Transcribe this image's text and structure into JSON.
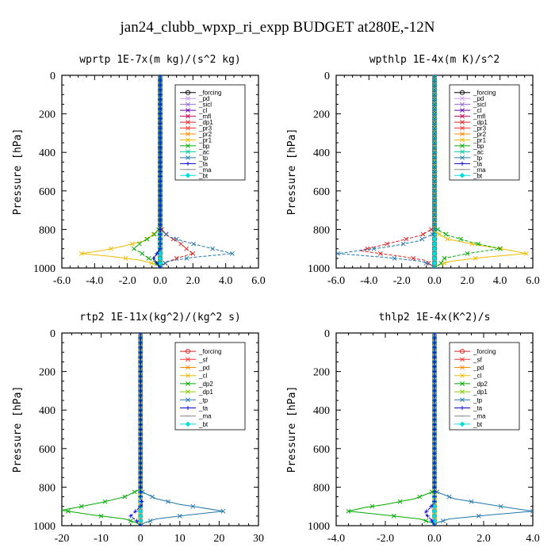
{
  "title": "jan24_clubb_wpxp_ri_expp  BUDGET at280E,-12N",
  "chart_data": [
    {
      "type": "line",
      "title": "wprtp   1E-7x(m kg)/(s^2 kg)",
      "ylabel": "Pressure [hPa]",
      "xlim": [
        -6,
        6
      ],
      "ylim": [
        1000,
        0
      ],
      "xticks": [
        "-6.0",
        "-4.0",
        "-2.0",
        "0.0",
        "2.0",
        "4.0",
        "6.0"
      ],
      "yticks": [
        "0",
        "200",
        "400",
        "600",
        "800",
        "1000"
      ],
      "legend_position": "top-right",
      "series": [
        {
          "name": "_forcing",
          "color": "#000000",
          "marker": "o",
          "y": [
            0,
            500,
            850,
            1000
          ],
          "x": [
            0,
            0,
            0,
            0
          ]
        },
        {
          "name": "_pd",
          "color": "#cc99ff",
          "marker": "x",
          "y": [
            0,
            800,
            1000
          ],
          "x": [
            0,
            0,
            0
          ]
        },
        {
          "name": "_sicl",
          "color": "#9966cc",
          "marker": "x",
          "y": [
            0,
            800,
            1000
          ],
          "x": [
            0,
            0,
            0
          ]
        },
        {
          "name": "_cl",
          "color": "#6600aa",
          "marker": "x",
          "y": [
            0,
            800,
            1000
          ],
          "x": [
            0,
            0,
            0
          ]
        },
        {
          "name": "_mfl",
          "color": "#cc0055",
          "marker": "x",
          "y": [
            0,
            800,
            1000
          ],
          "x": [
            0,
            0,
            0
          ]
        },
        {
          "name": "_dp1",
          "color": "#dd2222",
          "marker": "x",
          "y": [
            0,
            790,
            830,
            870,
            900,
            925,
            950,
            970,
            990,
            1000
          ],
          "x": [
            0,
            0,
            0.4,
            1.2,
            1.6,
            2.0,
            1.0,
            0.4,
            0.1,
            0
          ]
        },
        {
          "name": "_pr3",
          "color": "#ff3333",
          "marker": "x",
          "y": [
            0,
            800,
            1000
          ],
          "x": [
            0,
            0,
            0
          ]
        },
        {
          "name": "_pr2",
          "color": "#ff8800",
          "marker": "x",
          "y": [
            0,
            800,
            1000
          ],
          "x": [
            0,
            0,
            0
          ]
        },
        {
          "name": "_pr1",
          "color": "#eebb00",
          "marker": "x",
          "y": [
            0,
            800,
            860,
            890,
            910,
            925,
            940,
            960,
            980,
            1000
          ],
          "x": [
            0,
            0,
            -1.0,
            -2.4,
            -3.6,
            -4.8,
            -3.0,
            -1.2,
            -0.3,
            0
          ]
        },
        {
          "name": "_bp",
          "color": "#00aa00",
          "marker": "x",
          "y": [
            0,
            790,
            830,
            870,
            900,
            925,
            950,
            975,
            1000
          ],
          "x": [
            0,
            0,
            -0.4,
            -1.2,
            -1.6,
            -1.1,
            -0.7,
            -0.2,
            0
          ]
        },
        {
          "name": "_ac",
          "color": "#00cc99",
          "marker": "x",
          "y": [
            0,
            800,
            1000
          ],
          "x": [
            0,
            0,
            0
          ]
        },
        {
          "name": "_tp",
          "color": "#2277aa",
          "marker": "x",
          "y": [
            0,
            800,
            840,
            870,
            900,
            925,
            945,
            965,
            985,
            1000
          ],
          "x": [
            0,
            0,
            0.6,
            1.8,
            3.2,
            4.4,
            2.0,
            0.5,
            0.1,
            0
          ]
        },
        {
          "name": "_ta",
          "color": "#0000cc",
          "marker": "+",
          "y": [
            0,
            900,
            950,
            975,
            1000
          ],
          "x": [
            0,
            0,
            -0.4,
            -0.2,
            0
          ]
        },
        {
          "name": "_ma",
          "color": "#888888",
          "marker": "-",
          "y": [
            0,
            1000
          ],
          "x": [
            0,
            0
          ]
        },
        {
          "name": "_bt",
          "color": "#00dddd",
          "marker": "D",
          "y": [
            0,
            1000
          ],
          "x": [
            0,
            0
          ]
        }
      ]
    },
    {
      "type": "line",
      "title": "wpthlp   1E-4x(m K)/s^2",
      "ylabel": "Pressure [hPa]",
      "xlim": [
        -6,
        6
      ],
      "ylim": [
        1000,
        0
      ],
      "xticks": [
        "-6.0",
        "-4.0",
        "-2.0",
        "0.0",
        "2.0",
        "4.0",
        "6.0"
      ],
      "yticks": [
        "0",
        "200",
        "400",
        "600",
        "800",
        "1000"
      ],
      "legend_position": "top-right",
      "series": [
        {
          "name": "_forcing",
          "color": "#000000",
          "marker": "o",
          "y": [
            0,
            1000
          ],
          "x": [
            0,
            0
          ]
        },
        {
          "name": "_pd",
          "color": "#cc99ff",
          "marker": "x",
          "y": [
            0,
            1000
          ],
          "x": [
            0,
            0
          ]
        },
        {
          "name": "_sicl",
          "color": "#9966cc",
          "marker": "x",
          "y": [
            0,
            1000
          ],
          "x": [
            0,
            0
          ]
        },
        {
          "name": "_cl",
          "color": "#6600aa",
          "marker": "x",
          "y": [
            0,
            1000
          ],
          "x": [
            0,
            0
          ]
        },
        {
          "name": "_mfl",
          "color": "#cc0055",
          "marker": "x",
          "y": [
            0,
            1000
          ],
          "x": [
            0,
            0
          ]
        },
        {
          "name": "_dp1",
          "color": "#dd2222",
          "marker": "x",
          "y": [
            0,
            790,
            830,
            860,
            890,
            910,
            940,
            960,
            990,
            1000
          ],
          "x": [
            0,
            0,
            -0.8,
            -2.2,
            -3.6,
            -4.6,
            -2.0,
            -0.6,
            -0.1,
            0
          ]
        },
        {
          "name": "_pr3",
          "color": "#ff3333",
          "marker": "x",
          "y": [
            0,
            1000
          ],
          "x": [
            0,
            0
          ]
        },
        {
          "name": "_pr2",
          "color": "#ff8800",
          "marker": "x",
          "y": [
            0,
            1000
          ],
          "x": [
            0,
            0
          ]
        },
        {
          "name": "_pr1",
          "color": "#eebb00",
          "marker": "x",
          "y": [
            0,
            810,
            850,
            880,
            905,
            925,
            945,
            965,
            985,
            1000
          ],
          "x": [
            0,
            0,
            0.8,
            2.6,
            4.4,
            5.6,
            3.0,
            1.0,
            0.2,
            0
          ]
        },
        {
          "name": "_bp",
          "color": "#00aa00",
          "marker": "x",
          "y": [
            0,
            790,
            830,
            870,
            900,
            925,
            950,
            975,
            1000
          ],
          "x": [
            0,
            0,
            0.8,
            2.4,
            4.0,
            2.0,
            0.6,
            0.4,
            0
          ]
        },
        {
          "name": "_ac",
          "color": "#00cc99",
          "marker": "x",
          "y": [
            0,
            1000
          ],
          "x": [
            0,
            0
          ]
        },
        {
          "name": "_tp",
          "color": "#2277aa",
          "marker": "x",
          "y": [
            0,
            820,
            860,
            890,
            910,
            925,
            945,
            965,
            985,
            1000
          ],
          "x": [
            0,
            0,
            -1.0,
            -2.8,
            -4.6,
            -5.9,
            -3.0,
            -0.8,
            -0.2,
            0
          ]
        },
        {
          "name": "_ta",
          "color": "#0000cc",
          "marker": "+",
          "y": [
            0,
            1000
          ],
          "x": [
            0,
            0
          ]
        },
        {
          "name": "_ma",
          "color": "#888888",
          "marker": "-",
          "y": [
            0,
            1000
          ],
          "x": [
            0,
            0
          ]
        },
        {
          "name": "_bt",
          "color": "#00dddd",
          "marker": "D",
          "y": [
            0,
            1000
          ],
          "x": [
            0,
            0
          ]
        }
      ]
    },
    {
      "type": "line",
      "title": "rtp2   1E-11x(kg^2)/(kg^2 s)",
      "ylabel": "Pressure [hPa]",
      "xlim": [
        -20,
        30
      ],
      "ylim": [
        1000,
        0
      ],
      "xticks": [
        "-20",
        "-10",
        "0",
        "10",
        "20",
        "30"
      ],
      "yticks": [
        "0",
        "200",
        "400",
        "600",
        "800",
        "1000"
      ],
      "legend_position": "top-right",
      "series": [
        {
          "name": "_forcing",
          "color": "#dd2222",
          "marker": "o",
          "y": [
            0,
            1000
          ],
          "x": [
            0,
            0
          ]
        },
        {
          "name": "_sf",
          "color": "#ff3333",
          "marker": "x",
          "y": [
            0,
            1000
          ],
          "x": [
            0,
            0
          ]
        },
        {
          "name": "_pd",
          "color": "#ff8800",
          "marker": "x",
          "y": [
            0,
            1000
          ],
          "x": [
            0,
            0
          ]
        },
        {
          "name": "_cl",
          "color": "#eebb00",
          "marker": "x",
          "y": [
            0,
            1000
          ],
          "x": [
            0,
            0
          ]
        },
        {
          "name": "_dp2",
          "color": "#00aa00",
          "marker": "x",
          "y": [
            0,
            810,
            850,
            880,
            900,
            920,
            945,
            965,
            985,
            1000
          ],
          "x": [
            0,
            0,
            -4,
            -10,
            -15,
            -20,
            -12,
            -4,
            -1,
            0
          ]
        },
        {
          "name": "_dp1",
          "color": "#88cc00",
          "marker": "x",
          "y": [
            0,
            1000
          ],
          "x": [
            0,
            0
          ]
        },
        {
          "name": "_tp",
          "color": "#2277aa",
          "marker": "x",
          "y": [
            0,
            820,
            860,
            890,
            905,
            925,
            945,
            965,
            985,
            1000
          ],
          "x": [
            0,
            0,
            4,
            10,
            15,
            21,
            12,
            4,
            1,
            0
          ]
        },
        {
          "name": "_ta",
          "color": "#0000cc",
          "marker": "+",
          "y": [
            0,
            850,
            890,
            920,
            950,
            975,
            1000
          ],
          "x": [
            0,
            0,
            0.5,
            -1.0,
            -2.5,
            -1.0,
            0
          ]
        },
        {
          "name": "_ma",
          "color": "#888888",
          "marker": "-",
          "y": [
            0,
            1000
          ],
          "x": [
            0,
            0
          ]
        },
        {
          "name": "_bt",
          "color": "#00dddd",
          "marker": "D",
          "y": [
            0,
            1000
          ],
          "x": [
            0,
            0
          ]
        }
      ]
    },
    {
      "type": "line",
      "title": "thlp2   1E-4x(K^2)/s",
      "ylabel": "Pressure [hPa]",
      "xlim": [
        -4,
        4
      ],
      "ylim": [
        1000,
        0
      ],
      "xticks": [
        "-4.0",
        "-2.0",
        "0.0",
        "2.0",
        "4.0"
      ],
      "yticks": [
        "0",
        "200",
        "400",
        "600",
        "800",
        "1000"
      ],
      "legend_position": "top-right",
      "series": [
        {
          "name": "_forcing",
          "color": "#dd2222",
          "marker": "o",
          "y": [
            0,
            1000
          ],
          "x": [
            0,
            0
          ]
        },
        {
          "name": "_sf",
          "color": "#ff3333",
          "marker": "x",
          "y": [
            0,
            1000
          ],
          "x": [
            0,
            0
          ]
        },
        {
          "name": "_pd",
          "color": "#ff8800",
          "marker": "x",
          "y": [
            0,
            1000
          ],
          "x": [
            0,
            0
          ]
        },
        {
          "name": "_cl",
          "color": "#eebb00",
          "marker": "x",
          "y": [
            0,
            1000
          ],
          "x": [
            0,
            0
          ]
        },
        {
          "name": "_dp2",
          "color": "#00aa00",
          "marker": "x",
          "y": [
            0,
            820,
            860,
            890,
            905,
            925,
            945,
            965,
            985,
            1000
          ],
          "x": [
            0,
            0,
            -0.8,
            -2.0,
            -2.8,
            -3.5,
            -2.0,
            -0.6,
            -0.1,
            0
          ]
        },
        {
          "name": "_dp1",
          "color": "#88cc00",
          "marker": "x",
          "y": [
            0,
            1000
          ],
          "x": [
            0,
            0
          ]
        },
        {
          "name": "_tp",
          "color": "#2277aa",
          "marker": "x",
          "y": [
            0,
            820,
            860,
            890,
            910,
            925,
            945,
            965,
            985,
            1000
          ],
          "x": [
            0,
            0,
            0.8,
            2.2,
            3.2,
            4.0,
            2.2,
            0.6,
            0.1,
            0
          ]
        },
        {
          "name": "_ta",
          "color": "#0000cc",
          "marker": "+",
          "y": [
            0,
            880,
            910,
            935,
            960,
            985,
            1000
          ],
          "x": [
            0,
            0,
            -0.2,
            -0.4,
            -0.2,
            -0.05,
            0
          ]
        },
        {
          "name": "_ma",
          "color": "#888888",
          "marker": "-",
          "y": [
            0,
            1000
          ],
          "x": [
            0,
            0
          ]
        },
        {
          "name": "_bt",
          "color": "#00dddd",
          "marker": "D",
          "y": [
            0,
            1000
          ],
          "x": [
            0,
            0
          ]
        }
      ]
    }
  ]
}
